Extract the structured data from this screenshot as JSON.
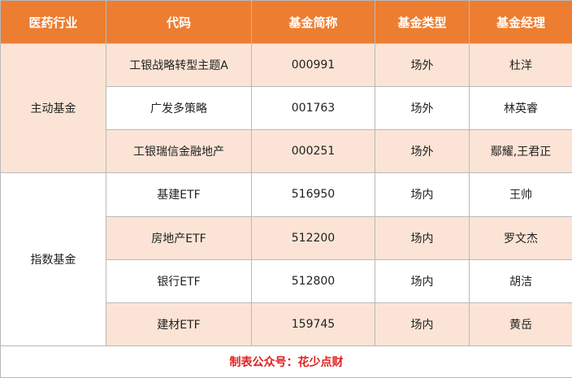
{
  "header": {
    "industry": "医药行业",
    "code": "代码",
    "name": "基金简称",
    "type": "基金类型",
    "manager": "基金经理"
  },
  "categories": {
    "active": "主动基金",
    "index": "指数基金"
  },
  "rows": [
    {
      "name": "工银战略转型主题A",
      "code": "000991",
      "type": "场外",
      "manager": "杜洋"
    },
    {
      "name": "广发多策略",
      "code": "001763",
      "type": "场外",
      "manager": "林英睿"
    },
    {
      "name": "工银瑞信金融地产",
      "code": "000251",
      "type": "场外",
      "manager": "鄢耀,王君正"
    },
    {
      "name": "基建ETF",
      "code": "516950",
      "type": "场内",
      "manager": "王帅"
    },
    {
      "name": "房地产ETF",
      "code": "512200",
      "type": "场内",
      "manager": "罗文杰"
    },
    {
      "name": "银行ETF",
      "code": "512800",
      "type": "场内",
      "manager": "胡洁"
    },
    {
      "name": "建材ETF",
      "code": "159745",
      "type": "场内",
      "manager": "黄岳"
    }
  ],
  "footer": {
    "note": "制表公众号：花少点财"
  },
  "colors": {
    "header_bg": "#ed7d31",
    "row_tint": "#fbe4d5",
    "footer_text": "#e02020"
  }
}
